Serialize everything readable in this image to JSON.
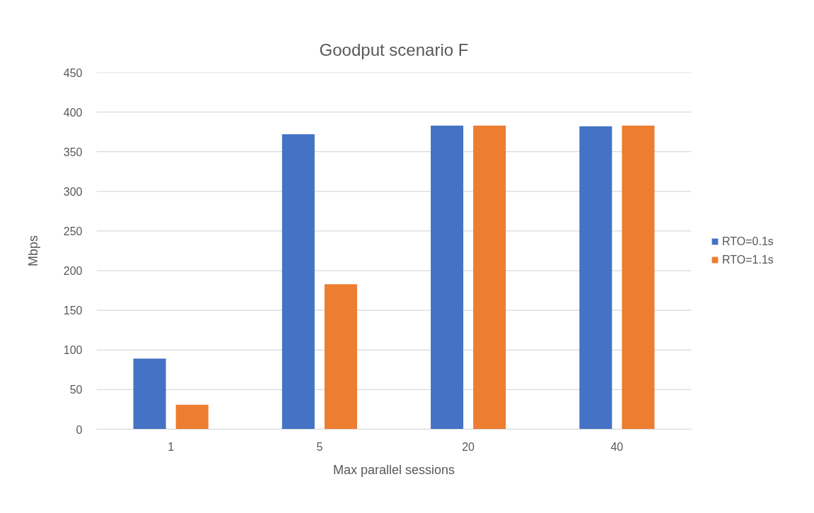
{
  "chart_data": {
    "type": "bar",
    "title": "Goodput scenario F",
    "xlabel": "Max parallel sessions",
    "ylabel": "Mbps",
    "categories": [
      "1",
      "5",
      "20",
      "40"
    ],
    "series": [
      {
        "name": "RTO=0.1s",
        "color": "#4472c4",
        "values": [
          89,
          372,
          383,
          382
        ]
      },
      {
        "name": "RTO=1.1s",
        "color": "#ed7d31",
        "values": [
          31,
          183,
          383,
          383
        ]
      }
    ],
    "ylim": [
      0,
      450
    ],
    "yticks": [
      0,
      50,
      100,
      150,
      200,
      250,
      300,
      350,
      400,
      450
    ],
    "grid": "y",
    "legend": "right"
  }
}
